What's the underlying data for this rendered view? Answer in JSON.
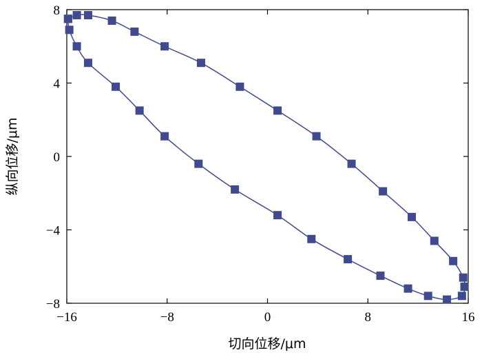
{
  "chart_data": {
    "type": "scatter",
    "title": "",
    "xlabel": "切向位移/μm",
    "ylabel": "纵向位移/μm",
    "xlim": [
      -16,
      16
    ],
    "ylim": [
      -8,
      8
    ],
    "xticks": [
      -16,
      -8,
      0,
      8,
      16
    ],
    "yticks": [
      -8,
      -4,
      0,
      4,
      8
    ],
    "xtick_labels": [
      "−16",
      "−8",
      "0",
      "8",
      "16"
    ],
    "ytick_labels": [
      "−8",
      "−4",
      "0",
      "4",
      "8"
    ],
    "grid": false,
    "legend": "none",
    "color": "#3f4a8f",
    "marker": "square",
    "connected": true,
    "series": [
      {
        "points": [
          [
            -15.9,
            7.5
          ],
          [
            -15.8,
            6.9
          ],
          [
            -15.2,
            6.0
          ],
          [
            -14.3,
            5.1
          ],
          [
            -12.1,
            3.8
          ],
          [
            -10.2,
            2.5
          ],
          [
            -8.2,
            1.1
          ],
          [
            -5.5,
            -0.4
          ],
          [
            -2.6,
            -1.8
          ],
          [
            0.8,
            -3.2
          ],
          [
            3.5,
            -4.5
          ],
          [
            6.4,
            -5.6
          ],
          [
            9.0,
            -6.5
          ],
          [
            11.2,
            -7.2
          ],
          [
            12.8,
            -7.6
          ],
          [
            14.3,
            -7.8
          ],
          [
            15.5,
            -7.6
          ],
          [
            15.7,
            -7.1
          ],
          [
            15.6,
            -6.6
          ],
          [
            14.8,
            -5.7
          ],
          [
            13.3,
            -4.6
          ],
          [
            11.5,
            -3.3
          ],
          [
            9.2,
            -1.9
          ],
          [
            6.7,
            -0.4
          ],
          [
            3.9,
            1.1
          ],
          [
            0.8,
            2.5
          ],
          [
            -2.2,
            3.8
          ],
          [
            -5.3,
            5.1
          ],
          [
            -8.2,
            6.0
          ],
          [
            -10.6,
            6.8
          ],
          [
            -12.4,
            7.4
          ],
          [
            -14.3,
            7.7
          ],
          [
            -15.2,
            7.7
          ],
          [
            -15.9,
            7.5
          ]
        ]
      }
    ]
  }
}
